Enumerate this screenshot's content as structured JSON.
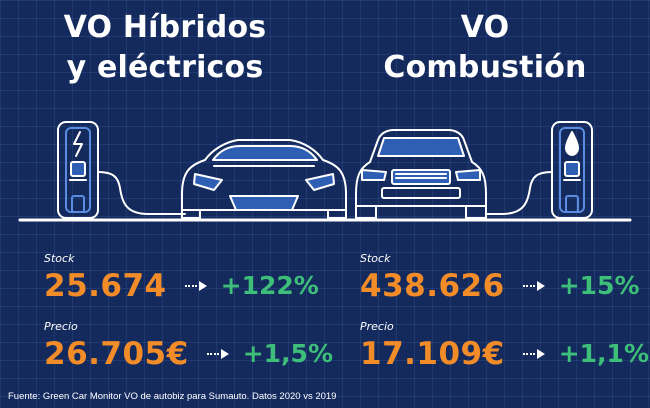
{
  "left": {
    "title_line1": "VO Híbridos",
    "title_line2": "y eléctricos",
    "stock_label": "Stock",
    "stock_value": "25.674",
    "stock_change": "+122%",
    "price_label": "Precio",
    "price_value": "26.705€",
    "price_change": "+1,5%"
  },
  "right": {
    "title_line1": "VO",
    "title_line2": "Combustión",
    "stock_label": "Stock",
    "stock_value": "438.626",
    "stock_change": "+15%",
    "price_label": "Precio",
    "price_value": "17.109€",
    "price_change": "+1,1%"
  },
  "footer": "Fuente: Green Car Monitor VO de autobiz para Sumauto. Datos 2020 vs 2019",
  "icons": {
    "left_charger": "lightning-icon",
    "right_charger": "fuel-drop-icon",
    "left_car": "electric-car-icon",
    "right_car": "combustion-car-icon",
    "arrow": "arrow-right-icon"
  },
  "colors": {
    "background": "#142a5c",
    "value": "#f28c28",
    "change": "#3dbf7a",
    "line_art": "#ffffff",
    "car_glass": "#2f5fb5"
  }
}
